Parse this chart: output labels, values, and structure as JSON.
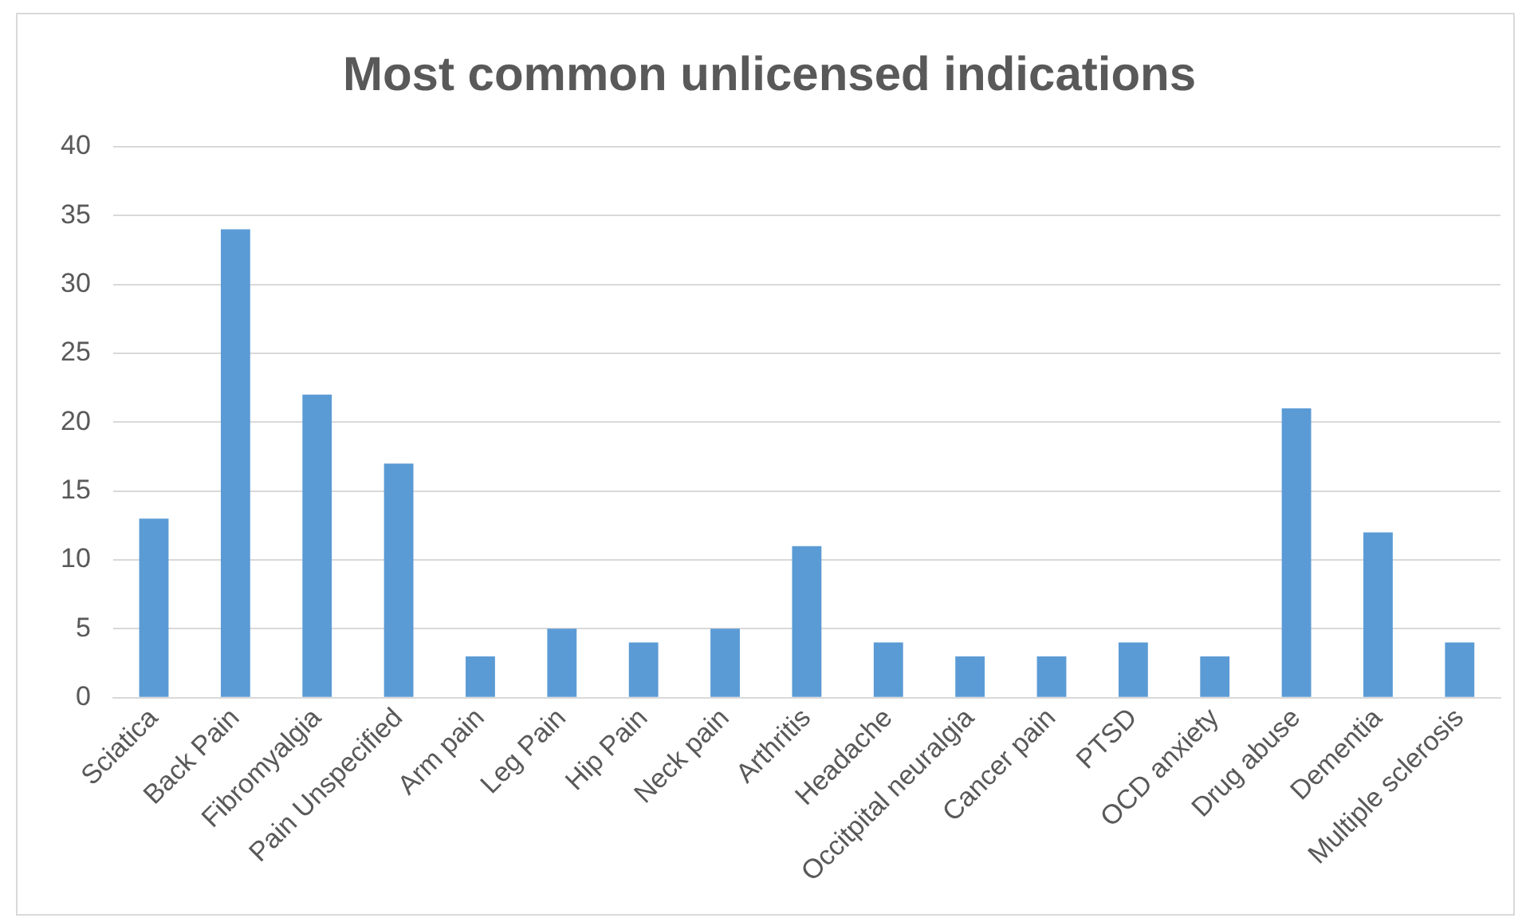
{
  "chart_data": {
    "type": "bar",
    "title": "Most common unlicensed indications",
    "categories": [
      "Sciatica",
      "Back Pain",
      "Fibromyalgia",
      "Pain Unspecified",
      "Arm pain",
      "Leg Pain",
      "Hip Pain",
      "Neck pain",
      "Arthritis",
      "Headache",
      "Occitpital neuralgia",
      "Cancer pain",
      "PTSD",
      "OCD anxiety",
      "Drug abuse",
      "Dementia",
      "Multiple sclerosis"
    ],
    "values": [
      13,
      34,
      22,
      17,
      3,
      5,
      4,
      5,
      11,
      4,
      3,
      3,
      4,
      3,
      21,
      12,
      4
    ],
    "color": "#5b9bd5",
    "ylim": [
      0,
      40
    ],
    "yticks": [
      0,
      5,
      10,
      15,
      20,
      25,
      30,
      35,
      40
    ],
    "grid": "y",
    "legend": false
  }
}
